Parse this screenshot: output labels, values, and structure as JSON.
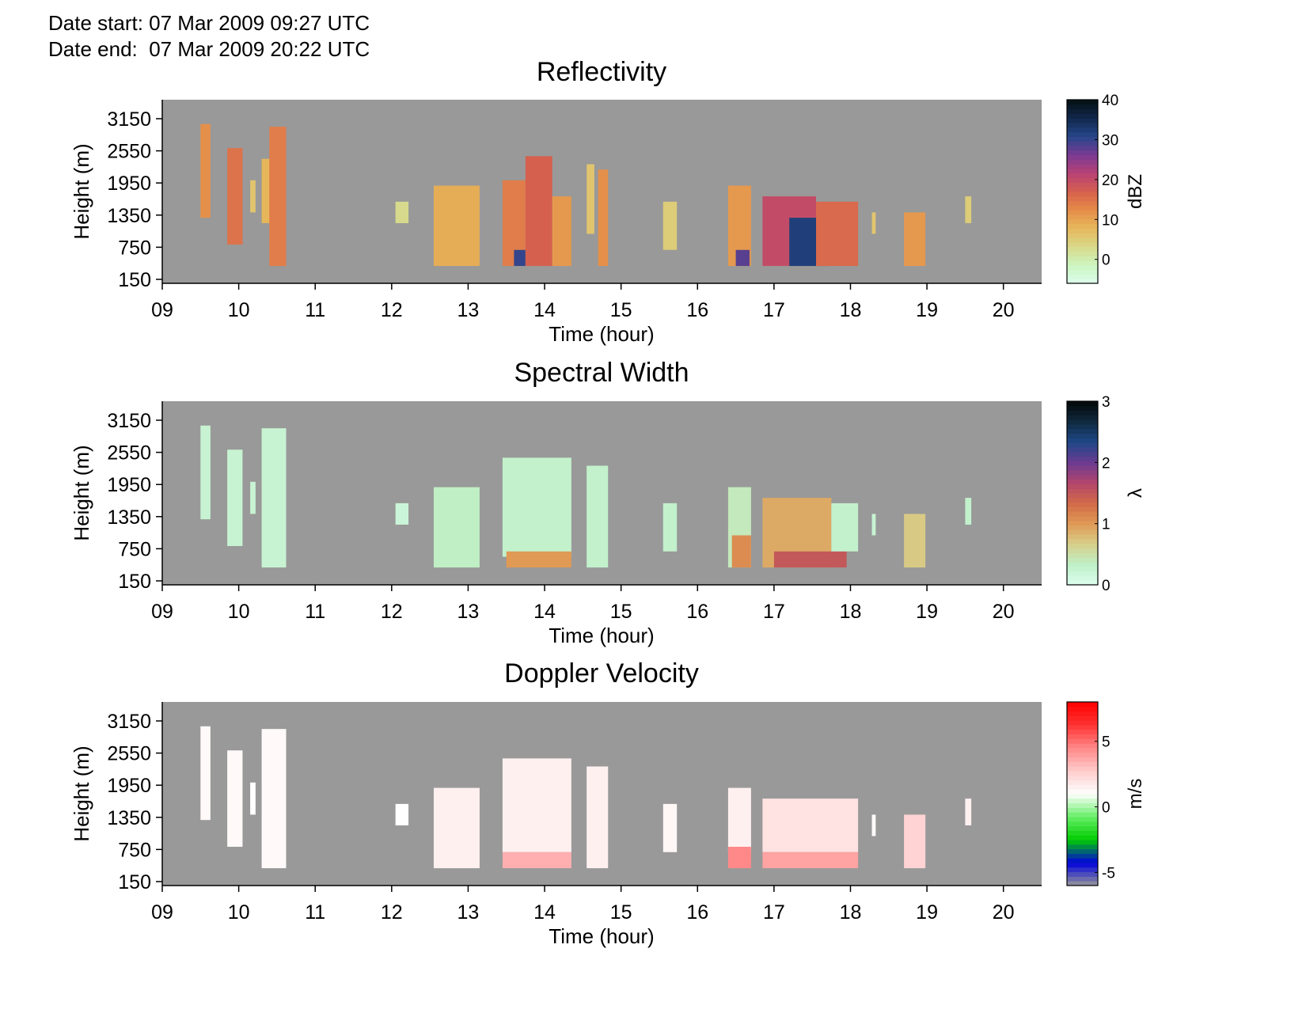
{
  "header": {
    "date_start": "Date start: 07 Mar 2009 09:27 UTC",
    "date_end": "Date end:  07 Mar 2009 20:22 UTC"
  },
  "colors": {
    "background": "#999999",
    "axis": "#000000",
    "reflectivity_scale": [
      "#ddfdef",
      "#ccf5c0",
      "#d8d98a",
      "#e6b85c",
      "#e58c48",
      "#d6604e",
      "#b84275",
      "#7a3a93",
      "#25478a",
      "#12284c",
      "#041012"
    ],
    "width_scale": [
      "#ddfdef",
      "#bff0c8",
      "#d7cf8a",
      "#e09a55",
      "#d26a48",
      "#b3456c",
      "#6b3b91",
      "#1e4888",
      "#102a3f",
      "#020807"
    ],
    "velocity_scale": [
      "#999999",
      "#0000dd",
      "#00cc00",
      "#66ee66",
      "#ffffff",
      "#ffcccc",
      "#ff8888",
      "#ff3333",
      "#ff0000"
    ]
  },
  "chart_data": [
    {
      "type": "heatmap",
      "title": "Reflectivity",
      "xlabel": "Time (hour)",
      "ylabel": "Height (m)",
      "x_tick_labels": [
        "09",
        "10",
        "11",
        "12",
        "13",
        "14",
        "15",
        "16",
        "17",
        "18",
        "19",
        "20"
      ],
      "y_tick_labels": [
        "3150",
        "2550",
        "1950",
        "1350",
        "750",
        "150"
      ],
      "xlim": [
        9.0,
        20.5
      ],
      "ylim": [
        0,
        3400
      ],
      "colorbar": {
        "label": "dBZ",
        "range": [
          -6,
          40
        ],
        "ticks": [
          40,
          30,
          20,
          10,
          0
        ]
      },
      "cells": [
        {
          "t0": 9.5,
          "t1": 9.63,
          "h0": 1300,
          "h1": 3050,
          "v": 12
        },
        {
          "t0": 9.85,
          "t1": 10.05,
          "h0": 800,
          "h1": 2600,
          "v": 15
        },
        {
          "t0": 10.15,
          "t1": 10.22,
          "h0": 1400,
          "h1": 2000,
          "v": 6
        },
        {
          "t0": 10.3,
          "t1": 10.45,
          "h0": 1200,
          "h1": 2400,
          "v": 8
        },
        {
          "t0": 10.4,
          "t1": 10.62,
          "h0": 400,
          "h1": 3000,
          "v": 14
        },
        {
          "t0": 12.05,
          "t1": 12.22,
          "h0": 1200,
          "h1": 1600,
          "v": 3
        },
        {
          "t0": 12.55,
          "t1": 13.15,
          "h0": 400,
          "h1": 1900,
          "v": 9
        },
        {
          "t0": 13.45,
          "t1": 13.75,
          "h0": 400,
          "h1": 2000,
          "v": 14
        },
        {
          "t0": 13.6,
          "t1": 13.75,
          "h0": 400,
          "h1": 700,
          "v": 30
        },
        {
          "t0": 13.75,
          "t1": 14.1,
          "h0": 400,
          "h1": 2450,
          "v": 17
        },
        {
          "t0": 14.1,
          "t1": 14.35,
          "h0": 400,
          "h1": 1700,
          "v": 11
        },
        {
          "t0": 14.55,
          "t1": 14.65,
          "h0": 1000,
          "h1": 2300,
          "v": 6
        },
        {
          "t0": 14.7,
          "t1": 14.83,
          "h0": 400,
          "h1": 2200,
          "v": 12
        },
        {
          "t0": 15.55,
          "t1": 15.73,
          "h0": 700,
          "h1": 1600,
          "v": 5
        },
        {
          "t0": 16.4,
          "t1": 16.7,
          "h0": 400,
          "h1": 1900,
          "v": 11
        },
        {
          "t0": 16.5,
          "t1": 16.68,
          "h0": 400,
          "h1": 700,
          "v": 28
        },
        {
          "t0": 16.85,
          "t1": 17.55,
          "h0": 400,
          "h1": 1700,
          "v": 20
        },
        {
          "t0": 17.2,
          "t1": 17.7,
          "h0": 400,
          "h1": 1300,
          "v": 32
        },
        {
          "t0": 17.55,
          "t1": 18.1,
          "h0": 400,
          "h1": 1600,
          "v": 16
        },
        {
          "t0": 18.28,
          "t1": 18.33,
          "h0": 1000,
          "h1": 1400,
          "v": 6
        },
        {
          "t0": 18.7,
          "t1": 18.98,
          "h0": 400,
          "h1": 1400,
          "v": 11
        },
        {
          "t0": 19.5,
          "t1": 19.58,
          "h0": 1200,
          "h1": 1700,
          "v": 5
        }
      ]
    },
    {
      "type": "heatmap",
      "title": "Spectral Width",
      "xlabel": "Time (hour)",
      "ylabel": "Height (m)",
      "x_tick_labels": [
        "09",
        "10",
        "11",
        "12",
        "13",
        "14",
        "15",
        "16",
        "17",
        "18",
        "19",
        "20"
      ],
      "y_tick_labels": [
        "3150",
        "2550",
        "1950",
        "1350",
        "750",
        "150"
      ],
      "xlim": [
        9.0,
        20.5
      ],
      "ylim": [
        0,
        3400
      ],
      "colorbar": {
        "label": "λ",
        "range": [
          0,
          3
        ],
        "ticks": [
          3,
          2,
          1,
          0
        ]
      },
      "cells": [
        {
          "t0": 9.5,
          "t1": 9.63,
          "h0": 1300,
          "h1": 3050,
          "v": 0.25
        },
        {
          "t0": 9.85,
          "t1": 10.05,
          "h0": 800,
          "h1": 2600,
          "v": 0.25
        },
        {
          "t0": 10.15,
          "t1": 10.22,
          "h0": 1400,
          "h1": 2000,
          "v": 0.25
        },
        {
          "t0": 10.3,
          "t1": 10.62,
          "h0": 400,
          "h1": 3000,
          "v": 0.25
        },
        {
          "t0": 12.05,
          "t1": 12.22,
          "h0": 1200,
          "h1": 1600,
          "v": 0.2
        },
        {
          "t0": 12.55,
          "t1": 13.15,
          "h0": 400,
          "h1": 1900,
          "v": 0.35
        },
        {
          "t0": 13.45,
          "t1": 14.35,
          "h0": 600,
          "h1": 2450,
          "v": 0.3
        },
        {
          "t0": 13.5,
          "t1": 14.35,
          "h0": 400,
          "h1": 700,
          "v": 1.0
        },
        {
          "t0": 14.55,
          "t1": 14.83,
          "h0": 400,
          "h1": 2300,
          "v": 0.3
        },
        {
          "t0": 15.55,
          "t1": 15.73,
          "h0": 700,
          "h1": 1600,
          "v": 0.3
        },
        {
          "t0": 16.4,
          "t1": 16.7,
          "h0": 400,
          "h1": 1900,
          "v": 0.4
        },
        {
          "t0": 16.45,
          "t1": 16.7,
          "h0": 400,
          "h1": 1000,
          "v": 1.1
        },
        {
          "t0": 16.85,
          "t1": 17.75,
          "h0": 400,
          "h1": 1700,
          "v": 0.9
        },
        {
          "t0": 17.0,
          "t1": 17.95,
          "h0": 400,
          "h1": 700,
          "v": 1.5
        },
        {
          "t0": 17.75,
          "t1": 18.1,
          "h0": 700,
          "h1": 1600,
          "v": 0.3
        },
        {
          "t0": 18.28,
          "t1": 18.33,
          "h0": 1000,
          "h1": 1400,
          "v": 0.25
        },
        {
          "t0": 18.7,
          "t1": 18.98,
          "h0": 400,
          "h1": 1400,
          "v": 0.7
        },
        {
          "t0": 19.5,
          "t1": 19.58,
          "h0": 1200,
          "h1": 1700,
          "v": 0.3
        }
      ]
    },
    {
      "type": "heatmap",
      "title": "Doppler Velocity",
      "xlabel": "Time (hour)",
      "ylabel": "Height (m)",
      "x_tick_labels": [
        "09",
        "10",
        "11",
        "12",
        "13",
        "14",
        "15",
        "16",
        "17",
        "18",
        "19",
        "20"
      ],
      "y_tick_labels": [
        "3150",
        "2550",
        "1950",
        "1350",
        "750",
        "150"
      ],
      "xlim": [
        9.0,
        20.5
      ],
      "ylim": [
        0,
        3400
      ],
      "colorbar": {
        "label": "m/s",
        "range": [
          -6,
          8
        ],
        "ticks": [
          5,
          0,
          -5
        ]
      },
      "cells": [
        {
          "t0": 9.5,
          "t1": 9.63,
          "h0": 1300,
          "h1": 3050,
          "v": 1.2
        },
        {
          "t0": 9.85,
          "t1": 10.05,
          "h0": 800,
          "h1": 2600,
          "v": 1.2
        },
        {
          "t0": 10.15,
          "t1": 10.22,
          "h0": 1400,
          "h1": 2000,
          "v": 1.0
        },
        {
          "t0": 10.3,
          "t1": 10.62,
          "h0": 400,
          "h1": 3000,
          "v": 1.2
        },
        {
          "t0": 12.05,
          "t1": 12.22,
          "h0": 1200,
          "h1": 1600,
          "v": 1.0
        },
        {
          "t0": 12.55,
          "t1": 13.15,
          "h0": 400,
          "h1": 1900,
          "v": 1.5
        },
        {
          "t0": 13.45,
          "t1": 14.35,
          "h0": 700,
          "h1": 2450,
          "v": 1.5
        },
        {
          "t0": 13.45,
          "t1": 14.35,
          "h0": 400,
          "h1": 700,
          "v": 3.5
        },
        {
          "t0": 14.55,
          "t1": 14.83,
          "h0": 400,
          "h1": 2300,
          "v": 1.5
        },
        {
          "t0": 15.55,
          "t1": 15.73,
          "h0": 700,
          "h1": 1600,
          "v": 1.3
        },
        {
          "t0": 16.4,
          "t1": 16.7,
          "h0": 700,
          "h1": 1900,
          "v": 1.5
        },
        {
          "t0": 16.4,
          "t1": 16.7,
          "h0": 400,
          "h1": 800,
          "v": 4.5
        },
        {
          "t0": 16.85,
          "t1": 18.1,
          "h0": 700,
          "h1": 1700,
          "v": 2.0
        },
        {
          "t0": 16.85,
          "t1": 18.1,
          "h0": 400,
          "h1": 700,
          "v": 3.8
        },
        {
          "t0": 18.28,
          "t1": 18.33,
          "h0": 1000,
          "h1": 1400,
          "v": 1.2
        },
        {
          "t0": 18.7,
          "t1": 18.98,
          "h0": 400,
          "h1": 1400,
          "v": 2.5
        },
        {
          "t0": 19.5,
          "t1": 19.58,
          "h0": 1200,
          "h1": 1700,
          "v": 1.5
        }
      ]
    }
  ]
}
